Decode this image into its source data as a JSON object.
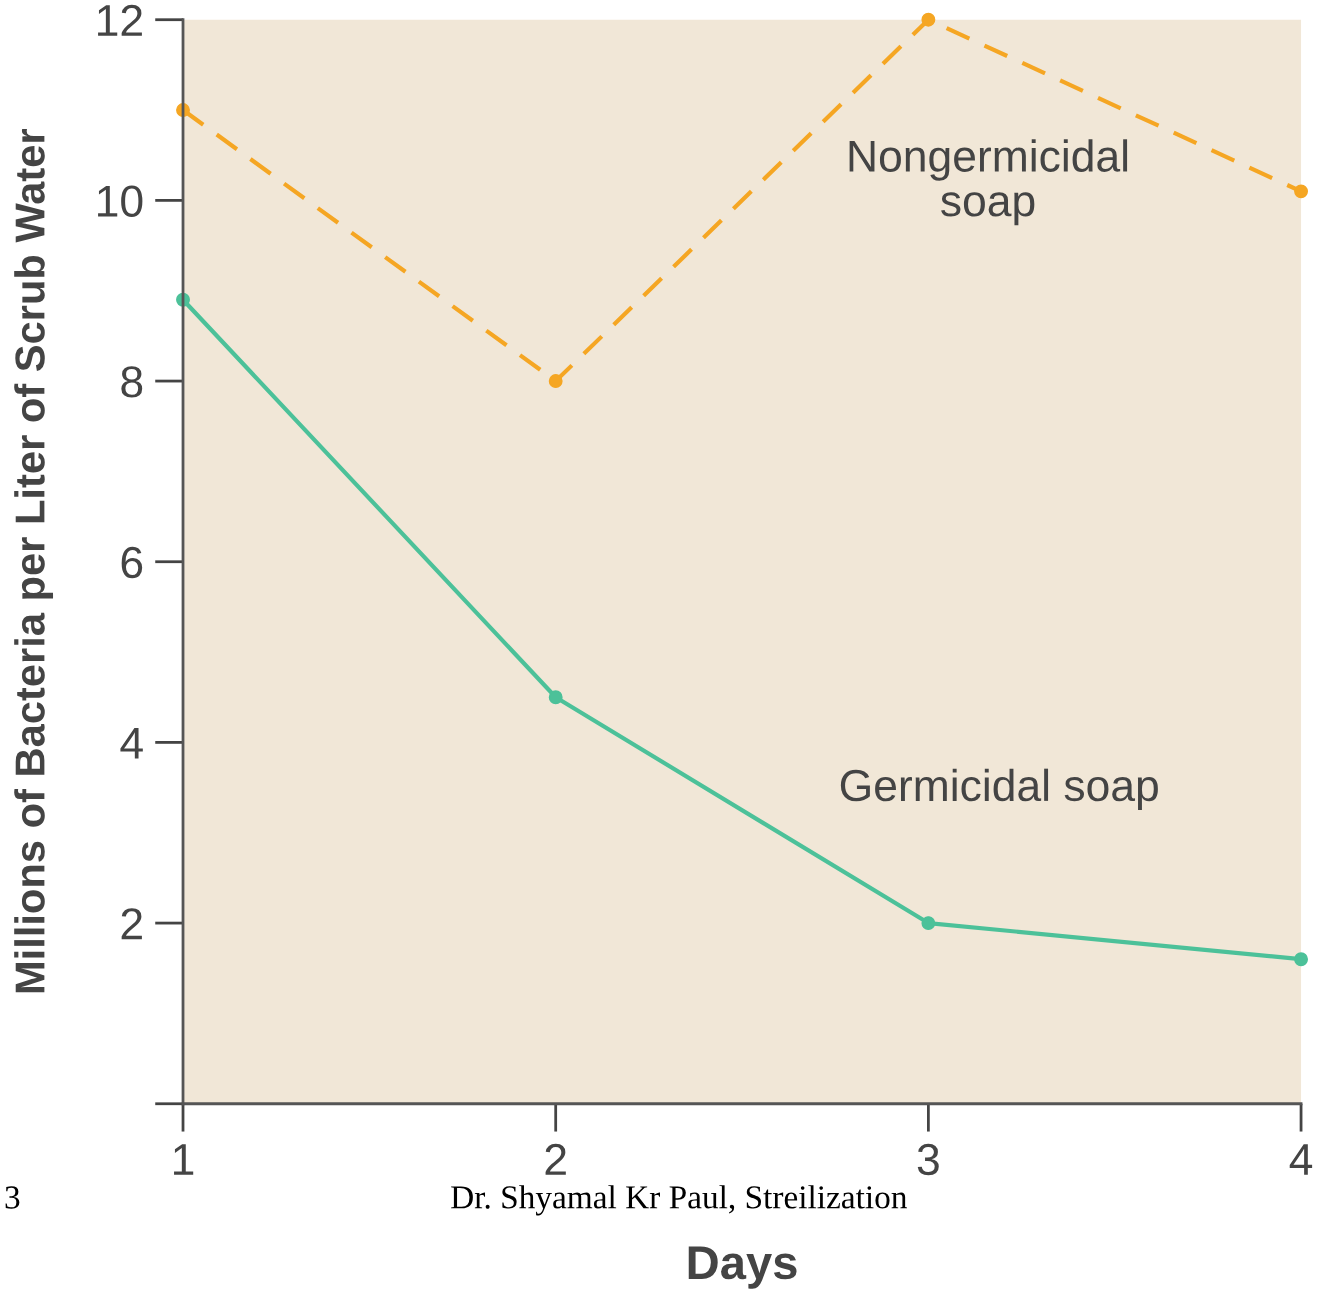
{
  "chart_data": {
    "type": "line",
    "xlabel": "Days",
    "ylabel": "Millions of Bacteria per Liter of Scrub Water",
    "x": [
      1,
      2,
      3,
      4
    ],
    "xlim": [
      1,
      4
    ],
    "xticks": [
      1,
      2,
      3,
      4
    ],
    "ylim": [
      0,
      12
    ],
    "yticks": [
      {
        "value": 0,
        "label": null
      },
      2,
      4,
      6,
      8,
      10,
      12
    ],
    "series": [
      {
        "color": "#f5a623",
        "values": [
          11,
          8.0,
          12,
          10.1
        ],
        "line_style": "dashed"
      },
      {
        "color": "#4cc199",
        "values": [
          8.9,
          4.5,
          2.0,
          1.6
        ],
        "line_style": "solid"
      }
    ],
    "marker": "circle",
    "grid": false,
    "legend": false,
    "annotations": [
      "Nongermicidal\nsoap",
      "Germicidal soap",
      "3",
      "Dr. Shyamal Kr Paul, Streilization"
    ]
  }
}
